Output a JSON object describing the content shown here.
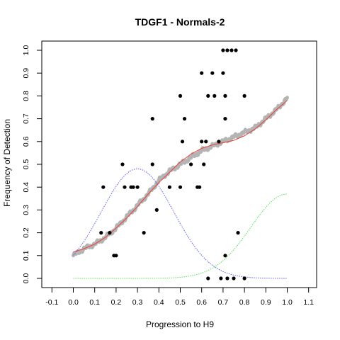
{
  "chart_data": {
    "type": "scatter",
    "title": "TDGF1 - Normals-2",
    "xlabel": "Progression to H9",
    "ylabel": "Frequency of Detection",
    "xlim": [
      -0.1,
      1.1
    ],
    "ylim": [
      0.0,
      1.0
    ],
    "x_ticks": [
      "-0.1",
      "0.0",
      "0.1",
      "0.2",
      "0.3",
      "0.4",
      "0.5",
      "0.6",
      "0.7",
      "0.8",
      "0.9",
      "1.0",
      "1.1"
    ],
    "y_ticks": [
      "0.0",
      "0.1",
      "0.2",
      "0.3",
      "0.4",
      "0.5",
      "0.6",
      "0.7",
      "0.8",
      "0.9",
      "1.0"
    ],
    "grid": false,
    "colors": {
      "points": "#000000",
      "smooth_band": "#b4b4b4",
      "fit_line": "#e8413a",
      "blue_curve": "#5b5bf0",
      "green_curve": "#58e058"
    },
    "points": [
      [
        0.13,
        0.2
      ],
      [
        0.14,
        0.4
      ],
      [
        0.17,
        0.2
      ],
      [
        0.19,
        0.1
      ],
      [
        0.2,
        0.1
      ],
      [
        0.23,
        0.5
      ],
      [
        0.24,
        0.4
      ],
      [
        0.27,
        0.4
      ],
      [
        0.28,
        0.4
      ],
      [
        0.3,
        0.4
      ],
      [
        0.33,
        0.2
      ],
      [
        0.37,
        0.7
      ],
      [
        0.37,
        0.5
      ],
      [
        0.39,
        0.3
      ],
      [
        0.45,
        0.4
      ],
      [
        0.5,
        0.8
      ],
      [
        0.5,
        0.4
      ],
      [
        0.51,
        0.6
      ],
      [
        0.52,
        0.7
      ],
      [
        0.55,
        0.5
      ],
      [
        0.58,
        0.4
      ],
      [
        0.59,
        0.4
      ],
      [
        0.6,
        0.9
      ],
      [
        0.6,
        0.6
      ],
      [
        0.61,
        0.5
      ],
      [
        0.62,
        0.6
      ],
      [
        0.63,
        0.8
      ],
      [
        0.63,
        0.0
      ],
      [
        0.65,
        0.9
      ],
      [
        0.66,
        0.8
      ],
      [
        0.68,
        0.6
      ],
      [
        0.69,
        0.0
      ],
      [
        0.7,
        1.0
      ],
      [
        0.7,
        0.9
      ],
      [
        0.71,
        0.8
      ],
      [
        0.71,
        0.1
      ],
      [
        0.71,
        0.7
      ],
      [
        0.72,
        1.0
      ],
      [
        0.72,
        0.0
      ],
      [
        0.74,
        1.0
      ],
      [
        0.75,
        0.0
      ],
      [
        0.76,
        1.0
      ],
      [
        0.77,
        0.2
      ],
      [
        0.8,
        0.8
      ],
      [
        0.8,
        0.0
      ]
    ],
    "series": [
      {
        "type": "smooth-band",
        "x": [
          0.0,
          0.05,
          0.1,
          0.15,
          0.2,
          0.25,
          0.3,
          0.35,
          0.4,
          0.45,
          0.5,
          0.55,
          0.6,
          0.65,
          0.7,
          0.75,
          0.8,
          0.85,
          0.9,
          0.95,
          1.0
        ],
        "y": [
          0.1,
          0.13,
          0.15,
          0.18,
          0.22,
          0.27,
          0.32,
          0.37,
          0.43,
          0.47,
          0.5,
          0.53,
          0.56,
          0.58,
          0.6,
          0.62,
          0.64,
          0.66,
          0.7,
          0.74,
          0.79
        ]
      },
      {
        "type": "fit-line",
        "x": [
          0.0,
          0.05,
          0.1,
          0.15,
          0.2,
          0.25,
          0.3,
          0.35,
          0.4,
          0.45,
          0.5,
          0.55,
          0.6,
          0.65,
          0.7,
          0.75,
          0.8,
          0.85,
          0.9,
          0.95,
          1.0
        ],
        "y": [
          0.115,
          0.13,
          0.15,
          0.18,
          0.22,
          0.265,
          0.315,
          0.37,
          0.42,
          0.465,
          0.51,
          0.545,
          0.57,
          0.585,
          0.595,
          0.605,
          0.625,
          0.655,
          0.695,
          0.74,
          0.78
        ]
      },
      {
        "type": "blue-dotted",
        "mu": 0.3,
        "sigma": 0.17,
        "peak": 0.48,
        "base": 0.0
      },
      {
        "type": "green-dotted",
        "mu": 1.0,
        "sigma": 0.17,
        "peak": 0.37,
        "base": 0.0
      }
    ]
  }
}
